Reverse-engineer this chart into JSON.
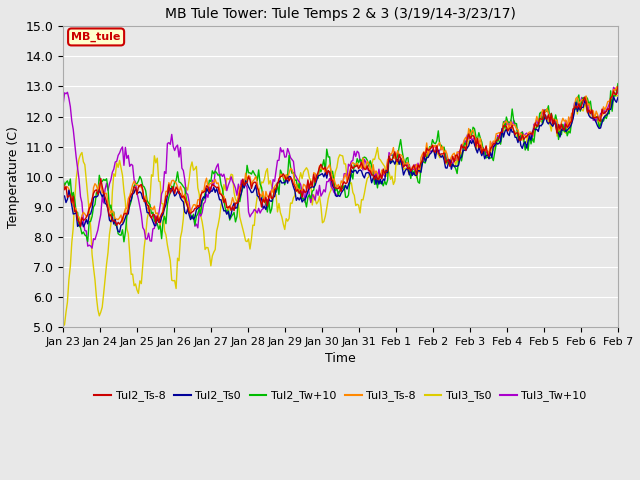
{
  "title": "MB Tule Tower: Tule Temps 2 & 3 (3/19/14-3/23/17)",
  "xlabel": "Time",
  "ylabel": "Temperature (C)",
  "ylim": [
    5.0,
    15.0
  ],
  "yticks": [
    5.0,
    6.0,
    7.0,
    8.0,
    9.0,
    10.0,
    11.0,
    12.0,
    13.0,
    14.0,
    15.0
  ],
  "xtick_labels": [
    "Jan 23",
    "Jan 24",
    "Jan 25",
    "Jan 26",
    "Jan 27",
    "Jan 28",
    "Jan 29",
    "Jan 30",
    "Jan 31",
    "Feb 1",
    "Feb 2",
    "Feb 3",
    "Feb 4",
    "Feb 5",
    "Feb 6",
    "Feb 7"
  ],
  "series_colors": {
    "Tul2_Ts-8": "#cc0000",
    "Tul2_Ts0": "#000099",
    "Tul2_Tw+10": "#00bb00",
    "Tul3_Ts-8": "#ff8800",
    "Tul3_Ts0": "#ddcc00",
    "Tul3_Tw+10": "#aa00cc"
  },
  "legend_box_label": "MB_tule",
  "legend_box_facecolor": "#ffffcc",
  "legend_box_edgecolor": "#cc0000",
  "legend_box_textcolor": "#cc0000",
  "fig_facecolor": "#e8e8e8",
  "plot_facecolor": "#e8e8e8",
  "grid_color": "#ffffff",
  "lw": 1.0
}
